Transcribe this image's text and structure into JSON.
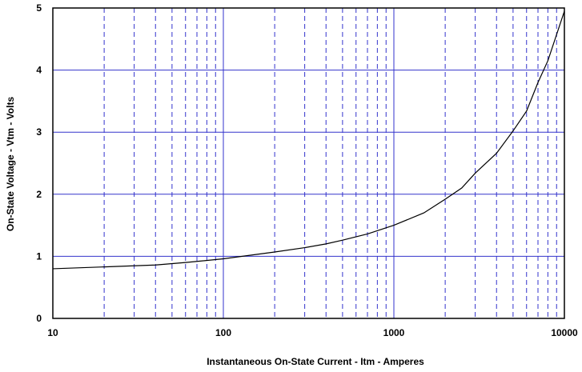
{
  "chart_data": {
    "type": "line",
    "title": "",
    "xlabel": "Instantaneous On-State Current - Itm - Amperes",
    "ylabel": "On-State Voltage - Vtm - Volts",
    "x_scale": "log",
    "xlim": [
      10,
      10000
    ],
    "ylim": [
      0,
      5
    ],
    "x_ticks": [
      10,
      100,
      1000,
      10000
    ],
    "x_tick_labels": [
      "10",
      "100",
      "1000",
      "10000"
    ],
    "y_ticks": [
      0,
      1,
      2,
      3,
      4,
      5
    ],
    "y_tick_labels": [
      "0",
      "1",
      "2",
      "3",
      "4",
      "5"
    ],
    "grid": true,
    "legend": "none",
    "series": [
      {
        "x": [
          10,
          20,
          40,
          60,
          100,
          200,
          300,
          400,
          500,
          700,
          1000,
          1500,
          2000,
          2500,
          3000,
          4000,
          5000,
          6000,
          7000,
          8000,
          10000
        ],
        "y": [
          0.8,
          0.83,
          0.86,
          0.9,
          0.96,
          1.07,
          1.14,
          1.2,
          1.26,
          1.36,
          1.5,
          1.7,
          1.92,
          2.1,
          2.34,
          2.66,
          3.02,
          3.34,
          3.8,
          4.15,
          4.95
        ]
      }
    ],
    "colors": {
      "grid": "#3333cc",
      "line": "#000000",
      "axes": "#000000"
    }
  }
}
